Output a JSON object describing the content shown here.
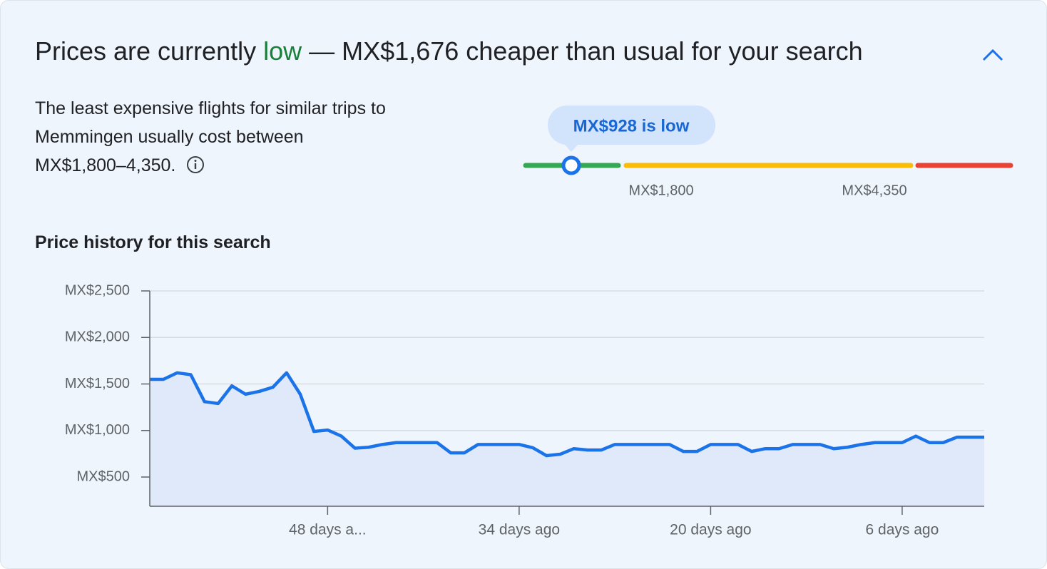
{
  "header": {
    "title_start": "Prices are currently",
    "title_status": "low",
    "title_end": "— MX$1,676 cheaper than usual for your search"
  },
  "summary": {
    "text": "The least expensive flights for similar trips to Memmingen usually cost between MX$1,800–4,350."
  },
  "price_range": {
    "current_label": "MX$928 is low",
    "low_label": "MX$1,800",
    "high_label": "MX$4,350"
  },
  "chart_data": {
    "type": "line",
    "title": "Price history for this search",
    "color": "#1a73e8",
    "area_color": "#dfe9fa",
    "grid": true,
    "x": [
      61,
      60,
      59,
      58,
      57,
      56,
      55,
      54,
      53,
      52,
      51,
      50,
      49,
      48,
      47,
      46,
      45,
      44,
      43,
      42,
      41,
      40,
      39,
      38,
      37,
      36,
      35,
      34,
      33,
      32,
      31,
      30,
      29,
      28,
      27,
      26,
      25,
      24,
      23,
      22,
      21,
      20,
      19,
      18,
      17,
      16,
      15,
      14,
      13,
      12,
      11,
      10,
      9,
      8,
      7,
      6,
      5,
      4,
      3,
      2,
      1,
      0
    ],
    "values": [
      1550,
      1550,
      1620,
      1600,
      1310,
      1290,
      1480,
      1390,
      1420,
      1465,
      1620,
      1390,
      990,
      1005,
      940,
      810,
      820,
      850,
      870,
      870,
      870,
      870,
      760,
      760,
      850,
      850,
      850,
      850,
      815,
      730,
      745,
      805,
      790,
      790,
      850,
      850,
      850,
      850,
      850,
      775,
      775,
      850,
      850,
      850,
      775,
      805,
      805,
      850,
      850,
      850,
      805,
      820,
      850,
      870,
      870,
      870,
      940,
      870,
      870,
      928,
      928,
      928
    ],
    "xlim": [
      61,
      0
    ],
    "ylim": [
      186,
      2500
    ],
    "xticks": [
      {
        "value": 48,
        "label": "48 days a..."
      },
      {
        "value": 34,
        "label": "34 days ago"
      },
      {
        "value": 20,
        "label": "20 days ago"
      },
      {
        "value": 6,
        "label": "6 days ago"
      }
    ],
    "yticks": [
      {
        "value": 500,
        "label": "MX$500"
      },
      {
        "value": 1000,
        "label": "MX$1,000"
      },
      {
        "value": 1500,
        "label": "MX$1,500"
      },
      {
        "value": 2000,
        "label": "MX$2,000"
      },
      {
        "value": 2500,
        "label": "MX$2,500"
      }
    ]
  }
}
